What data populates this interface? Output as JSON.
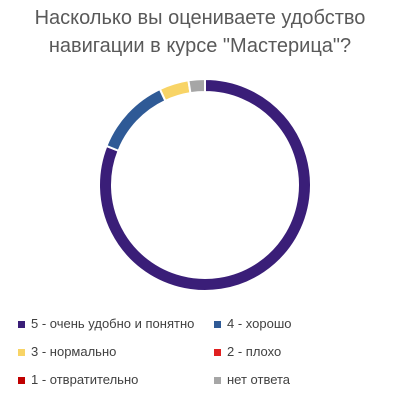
{
  "chart_data": {
    "type": "pie",
    "variant": "donut",
    "title": "Насколько вы оцениваете удобство навигации в курсе \"Мастерица\"?",
    "title_lines": [
      "Насколько вы оцениваете удобство",
      "навигации в курсе \"Мастерица\"?"
    ],
    "categories": [
      "5 - очень удобно и понятно",
      "4 - хорошо",
      "3 - нормально",
      "2 - плохо",
      "1 - отвратительно",
      "нет ответа"
    ],
    "values": [
      81,
      12,
      4.5,
      0,
      0,
      2.5
    ],
    "colors": [
      "#3a1e78",
      "#2f5a96",
      "#f8d466",
      "#e02020",
      "#c00000",
      "#a6a6a6"
    ],
    "legend_position": "bottom",
    "legend_columns": 2,
    "start_angle_deg": 0,
    "direction": "clockwise"
  }
}
